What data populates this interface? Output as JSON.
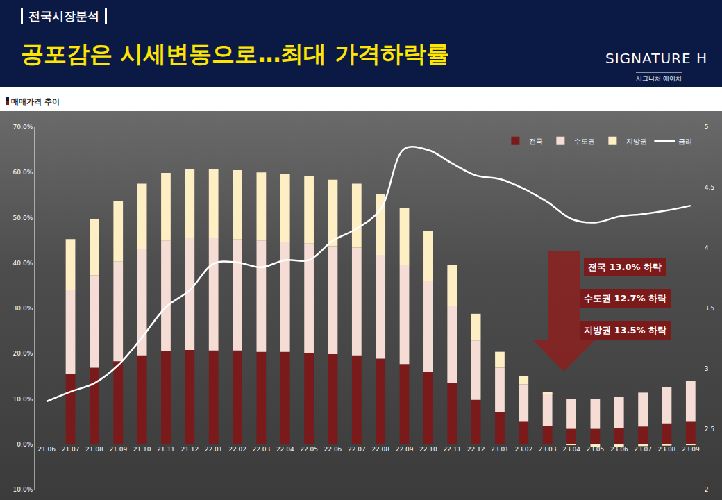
{
  "header": {
    "section": "전국시장분석",
    "title": "공포감은 시세변동으로…최대 가격하락률",
    "logo": "SIGNATURE H",
    "logo_sub": "시그니처 에이치"
  },
  "chart_data": {
    "type": "bar",
    "subtitle": "매매가격 추이",
    "stacked": true,
    "grid": false,
    "legend": "top right",
    "categories": [
      "21.06",
      "21.07",
      "21.08",
      "21.09",
      "21.10",
      "21.11",
      "21.12",
      "22.01",
      "22.02",
      "22.03",
      "22.04",
      "22.05",
      "22.06",
      "22.07",
      "22.08",
      "22.09",
      "22.10",
      "22.11",
      "22.12",
      "23.01",
      "23.02",
      "23.03",
      "23.04",
      "23.05",
      "23.06",
      "23.07",
      "23.08",
      "23.09"
    ],
    "series": [
      {
        "name": "전국",
        "color": "#7b1a1a",
        "values": [
          null,
          15.5,
          16.9,
          18.3,
          19.6,
          20.5,
          20.8,
          20.7,
          20.7,
          20.4,
          20.4,
          20.2,
          19.9,
          19.6,
          18.9,
          17.7,
          16.0,
          13.5,
          9.8,
          7.0,
          5.1,
          4.0,
          3.4,
          3.4,
          3.6,
          3.9,
          4.6,
          5.1
        ]
      },
      {
        "name": "수도권",
        "color": "#f5ddd5",
        "values": [
          null,
          18.5,
          20.4,
          22.0,
          23.5,
          24.4,
          24.7,
          24.8,
          24.5,
          24.6,
          24.3,
          24.1,
          23.8,
          23.8,
          22.9,
          21.8,
          20.1,
          17.1,
          13.1,
          9.9,
          8.1,
          7.3,
          6.6,
          6.6,
          6.9,
          7.5,
          8.0,
          8.9
        ]
      },
      {
        "name": "지방권",
        "color": "#fdeec4",
        "values": [
          null,
          11.3,
          12.3,
          13.3,
          14.4,
          15.0,
          15.3,
          15.3,
          15.3,
          15.0,
          14.9,
          14.8,
          14.7,
          14.1,
          13.5,
          12.7,
          11.0,
          8.9,
          5.9,
          3.5,
          1.8,
          0.3,
          -0.2,
          -0.5,
          -0.5,
          -0.4,
          -0.3,
          -0.2
        ]
      },
      {
        "name": "금리",
        "color": "#ffffff",
        "type": "line",
        "axis": "y2",
        "values": [
          2.73,
          2.81,
          2.88,
          3.03,
          3.26,
          3.51,
          3.65,
          3.87,
          3.88,
          3.84,
          3.9,
          3.9,
          4.06,
          4.16,
          4.32,
          4.82,
          4.81,
          4.7,
          4.6,
          4.57,
          4.49,
          4.38,
          4.24,
          4.21,
          4.26,
          4.28,
          4.31,
          4.35
        ]
      }
    ],
    "ylim": [
      -10,
      70
    ],
    "yticks": [
      {
        "value": -10,
        "label": "-10.0%"
      },
      {
        "value": 0,
        "label": "0.0%"
      },
      {
        "value": 10,
        "label": "10.0%"
      },
      {
        "value": 20,
        "label": "20.0%"
      },
      {
        "value": 30,
        "label": "30.0%"
      },
      {
        "value": 40,
        "label": "40.0%"
      },
      {
        "value": 50,
        "label": "50.0%"
      },
      {
        "value": 60,
        "label": "60.0%"
      },
      {
        "value": 70,
        "label": "70.0%"
      }
    ],
    "y2lim": [
      2,
      5
    ],
    "y2ticks": [
      2,
      2.5,
      3,
      3.5,
      4,
      4.5,
      5
    ],
    "annotations": [
      "전국 13.0% 하락",
      "수도권 12.7% 하락",
      "지방권 13.5% 하락"
    ]
  }
}
